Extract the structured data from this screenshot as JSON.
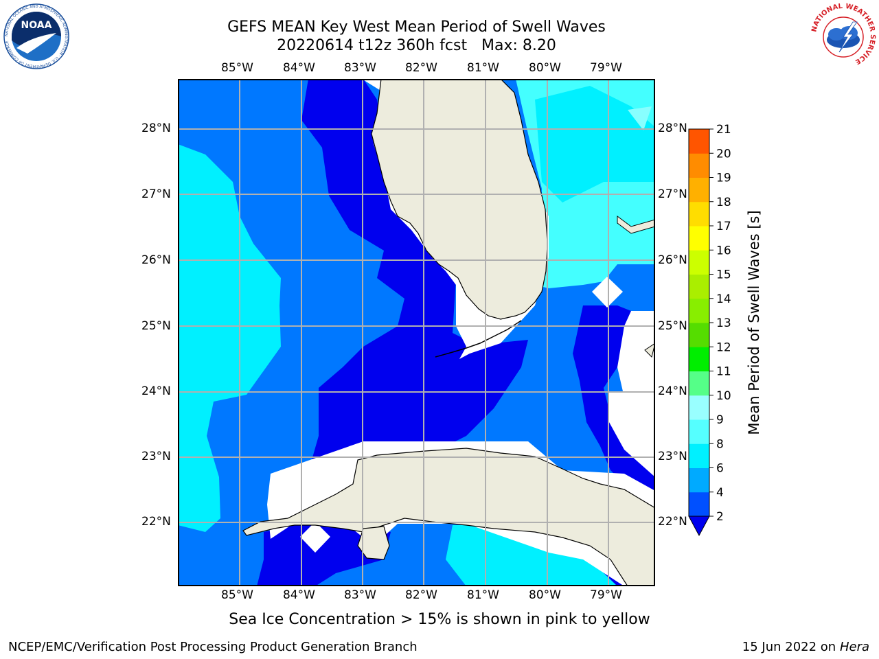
{
  "header": {
    "title_line1": "GEFS MEAN Key West Mean Period of Swell Waves",
    "title_line2": "20220614 t12z 360h fcst   Max: 8.20"
  },
  "logos": {
    "noaa_text": "NOAA",
    "noaa_ring_text": "NATIONAL OCEANIC AND ATMOSPHERIC ADMINISTRATION · U.S. DEPARTMENT OF COMMERCE",
    "nws_ring_text": "NATIONAL WEATHER SERVICE"
  },
  "map": {
    "lon_labels": [
      "85°W",
      "84°W",
      "83°W",
      "82°W",
      "81°W",
      "80°W",
      "79°W"
    ],
    "lat_labels": [
      "28°N",
      "27°N",
      "26°N",
      "25°N",
      "24°N",
      "23°N",
      "22°N"
    ]
  },
  "colorbar": {
    "label": "Mean Period of Swell Waves [s]",
    "ticks": [
      "2",
      "4",
      "6",
      "8",
      "9",
      "10",
      "11",
      "12",
      "13",
      "14",
      "15",
      "16",
      "17",
      "18",
      "19",
      "20",
      "21"
    ],
    "colors": [
      "#0050ff",
      "#00aaff",
      "#00f0ff",
      "#55ffff",
      "#99ffff",
      "#55ff88",
      "#00ee00",
      "#55dd00",
      "#88ee00",
      "#aaee00",
      "#ccff00",
      "#ffff00",
      "#ffdd00",
      "#ffb000",
      "#ff8c00",
      "#ff5500",
      "#ff2a00",
      "#ff0000"
    ],
    "under_color": "#0000ee"
  },
  "note": "Sea Ice Concentration > 15% is shown in pink to yellow",
  "footer": {
    "left": "NCEP/EMC/Verification Post Processing Product Generation Branch",
    "date": "15 Jun 2022 on",
    "host": "Hera"
  }
}
